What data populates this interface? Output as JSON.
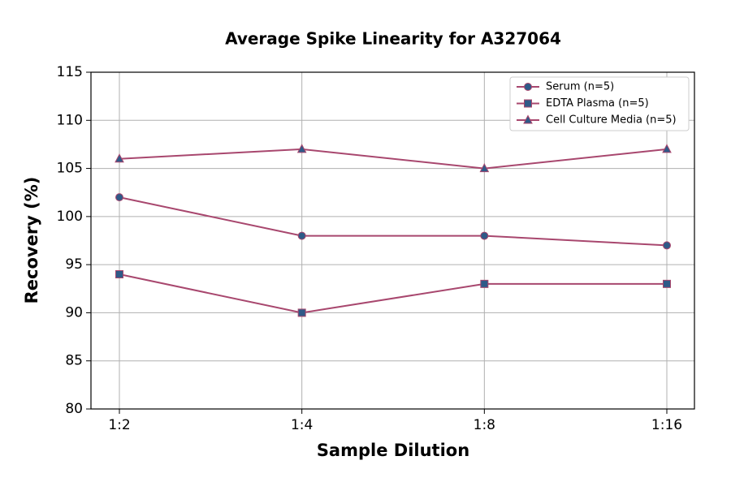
{
  "chart_data": {
    "type": "line",
    "title": "Average Spike Linearity for A327064",
    "x_label": "Sample Dilution",
    "y_label": "Recovery (%)",
    "categories": [
      "1:2",
      "1:4",
      "1:8",
      "1:16"
    ],
    "series": [
      {
        "name": "Serum (n=5)",
        "color": "#a8476e",
        "marker_color": "#2f5a88",
        "marker": "circle",
        "values": [
          102,
          98,
          98,
          97
        ]
      },
      {
        "name": "EDTA Plasma (n=5)",
        "color": "#a8476e",
        "marker_color": "#2f5a88",
        "marker": "square",
        "values": [
          94,
          90,
          93,
          93
        ]
      },
      {
        "name": "Cell Culture Media (n=5)",
        "color": "#a8476e",
        "marker_color": "#2f5a88",
        "marker": "triangle",
        "values": [
          106,
          107,
          105,
          107
        ]
      }
    ],
    "ylim": [
      80,
      115
    ],
    "yticks": [
      80,
      85,
      90,
      95,
      100,
      105,
      110,
      115
    ],
    "grid": true,
    "legend": "upper right"
  }
}
